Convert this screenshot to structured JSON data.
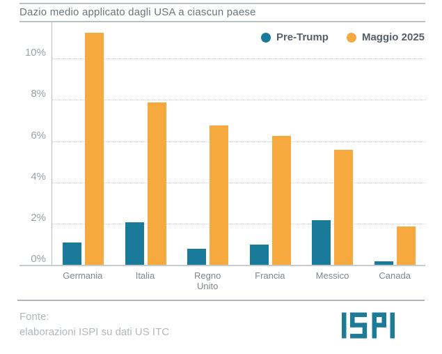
{
  "header": {
    "title": "Dazio medio applicato dagli USA a ciascun paese"
  },
  "chart_data": {
    "type": "bar",
    "title": "Dazio medio applicato dagli USA a ciascun paese",
    "categories": [
      "Germania",
      "Italia",
      "Regno Unito",
      "Francia",
      "Messico",
      "Canada"
    ],
    "series": [
      {
        "name": "Pre-Trump",
        "color": "#1a7a9a",
        "values": [
          1.1,
          2.1,
          0.8,
          1.0,
          2.2,
          0.2
        ]
      },
      {
        "name": "Maggio 2025",
        "color": "#f6a93f",
        "values": [
          11.3,
          7.9,
          6.8,
          6.3,
          5.6,
          1.9
        ]
      }
    ],
    "yticks": [
      0,
      2,
      4,
      6,
      8,
      10
    ],
    "ytick_labels": [
      "0%",
      "2%",
      "4%",
      "6%",
      "8%",
      "10%"
    ],
    "ylim": [
      0,
      11.8
    ],
    "ylabel": "",
    "xlabel": "",
    "grid": "horizontal-dotted",
    "legend_position": "top-right"
  },
  "footer": {
    "source_label": "Fonte:",
    "source_line": "elaborazioni ISPI su dati US ITC",
    "logo_text": "ISPI",
    "logo_color": "#1e7b97"
  },
  "colors": {
    "pre_trump": "#1a7a9a",
    "maggio_2025": "#f6a93f",
    "title_text": "#6b747c",
    "tick_text": "#9aa1a9",
    "category_text": "#7f878f",
    "footer_text": "#b2b8bd",
    "rule": "#bcc1c6",
    "gridline": "#ccd1d5",
    "baseline": "#c6cbd0"
  }
}
